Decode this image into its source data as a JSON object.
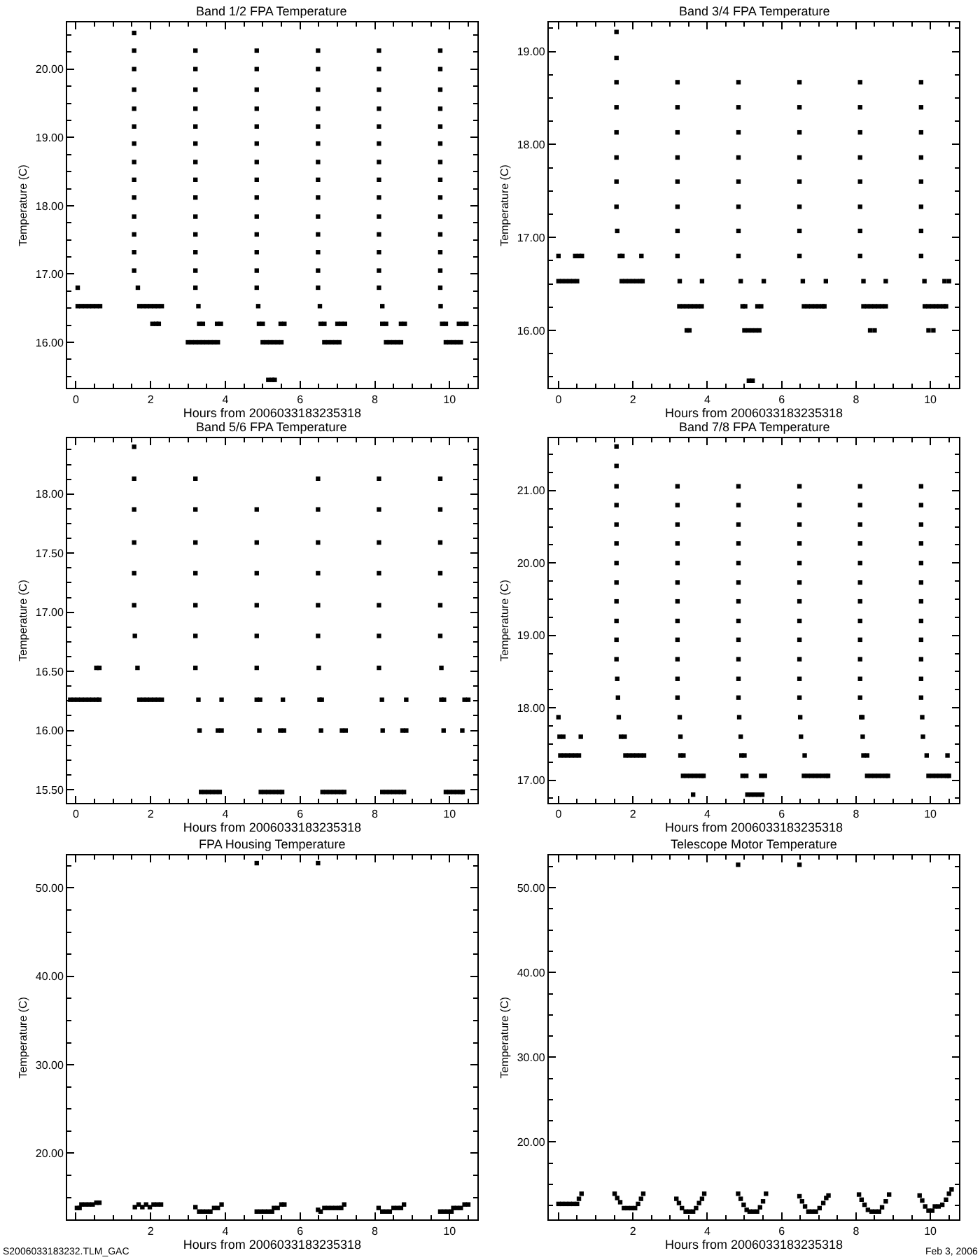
{
  "chart_data": [
    {
      "type": "scatter",
      "title": "Band 1/2 FPA Temperature",
      "xlabel": "Hours from 2006033183235318",
      "ylabel": "Temperature (C)",
      "color": "#000000",
      "marker": "square",
      "grid": false,
      "legend": false,
      "x": [
        0.05,
        0.05,
        0.15,
        0.25,
        0.35,
        0.45,
        0.55,
        0.65,
        1.56,
        1.56,
        1.56,
        1.56,
        1.56,
        1.56,
        1.56,
        1.56,
        1.56,
        1.56,
        1.56,
        1.56,
        1.56,
        1.56,
        1.66,
        1.7,
        1.8,
        1.9,
        2.0,
        2.1,
        2.2,
        2.3,
        2.05,
        2.15,
        2.22,
        3.2,
        3.2,
        3.2,
        3.2,
        3.2,
        3.2,
        3.2,
        3.2,
        3.2,
        3.2,
        3.2,
        3.2,
        3.2,
        3.2,
        3.28,
        3.3,
        3.4,
        3.0,
        3.1,
        3.2,
        3.3,
        3.4,
        3.5,
        3.6,
        3.7,
        3.8,
        3.78,
        3.88,
        4.84,
        4.84,
        4.84,
        4.84,
        4.84,
        4.84,
        4.84,
        4.84,
        4.84,
        4.84,
        4.84,
        4.84,
        4.84,
        4.84,
        4.88,
        4.9,
        5.0,
        5.0,
        5.1,
        5.2,
        5.3,
        5.4,
        5.5,
        5.15,
        5.25,
        5.32,
        5.48,
        5.58,
        6.48,
        6.48,
        6.48,
        6.48,
        6.48,
        6.48,
        6.48,
        6.48,
        6.48,
        6.48,
        6.48,
        6.48,
        6.48,
        6.48,
        6.53,
        6.55,
        6.65,
        6.65,
        6.75,
        6.85,
        6.95,
        7.05,
        7.0,
        7.1,
        7.2,
        8.11,
        8.11,
        8.11,
        8.11,
        8.11,
        8.11,
        8.11,
        8.11,
        8.11,
        8.11,
        8.11,
        8.11,
        8.11,
        8.11,
        8.2,
        8.2,
        8.3,
        8.3,
        8.4,
        8.5,
        8.6,
        8.7,
        8.7,
        8.8,
        9.75,
        9.75,
        9.75,
        9.75,
        9.75,
        9.75,
        9.75,
        9.75,
        9.75,
        9.75,
        9.75,
        9.75,
        9.75,
        9.75,
        9.76,
        9.8,
        9.9,
        9.9,
        10.0,
        10.1,
        10.2,
        10.3,
        10.25,
        10.35,
        10.45
      ],
      "values": [
        16.8,
        16.53,
        16.53,
        16.53,
        16.53,
        16.53,
        16.53,
        16.53,
        20.53,
        20.27,
        20.0,
        19.7,
        19.42,
        19.16,
        18.91,
        18.64,
        18.38,
        18.12,
        17.84,
        17.58,
        17.32,
        17.05,
        16.8,
        16.53,
        16.53,
        16.53,
        16.53,
        16.53,
        16.53,
        16.53,
        16.27,
        16.27,
        16.27,
        20.27,
        20.0,
        19.7,
        19.42,
        19.16,
        18.91,
        18.64,
        18.38,
        18.12,
        17.84,
        17.58,
        17.32,
        17.05,
        16.8,
        16.53,
        16.27,
        16.27,
        16.0,
        16.0,
        16.0,
        16.0,
        16.0,
        16.0,
        16.0,
        16.0,
        16.0,
        16.27,
        16.27,
        20.27,
        20.0,
        19.7,
        19.42,
        19.16,
        18.91,
        18.64,
        18.38,
        18.12,
        17.84,
        17.58,
        17.32,
        17.05,
        16.8,
        16.53,
        16.27,
        16.27,
        16.0,
        16.0,
        16.0,
        16.0,
        16.0,
        16.0,
        15.45,
        15.45,
        15.45,
        16.27,
        16.27,
        20.27,
        20.0,
        19.7,
        19.42,
        19.16,
        18.91,
        18.64,
        18.38,
        18.12,
        17.84,
        17.58,
        17.32,
        17.05,
        16.8,
        16.53,
        16.27,
        16.27,
        16.0,
        16.0,
        16.0,
        16.0,
        16.0,
        16.27,
        16.27,
        16.27,
        20.27,
        20.0,
        19.7,
        19.42,
        19.16,
        18.91,
        18.64,
        18.38,
        18.12,
        17.84,
        17.58,
        17.32,
        17.05,
        16.8,
        16.53,
        16.27,
        16.27,
        16.0,
        16.0,
        16.0,
        16.0,
        16.0,
        16.27,
        16.27,
        20.27,
        20.0,
        19.7,
        19.42,
        19.16,
        18.91,
        18.64,
        18.38,
        18.12,
        17.84,
        17.58,
        17.32,
        17.05,
        16.8,
        16.53,
        16.27,
        16.27,
        16.0,
        16.0,
        16.0,
        16.0,
        16.0,
        16.27,
        16.27,
        16.27
      ],
      "xlim": [
        -0.23,
        10.74
      ],
      "ylim": [
        15.33,
        20.68
      ],
      "xticks": [
        0,
        2,
        4,
        6,
        8,
        10
      ],
      "yticks": [
        {
          "value": 16,
          "label": "16.00"
        },
        {
          "value": 17,
          "label": "17.00"
        },
        {
          "value": 18,
          "label": "18.00"
        },
        {
          "value": 19,
          "label": "19.00"
        },
        {
          "value": 20,
          "label": "20.00"
        }
      ]
    },
    {
      "type": "scatter",
      "title": "Band 3/4 FPA Temperature",
      "xlabel": "Hours from 2006033183235318",
      "ylabel": "Temperature (C)",
      "color": "#000000",
      "marker": "square",
      "grid": false,
      "legend": false,
      "x": [
        0.0,
        0.45,
        0.55,
        0.63,
        0.0,
        0.1,
        0.2,
        0.3,
        0.4,
        0.5,
        1.56,
        1.56,
        1.56,
        1.56,
        1.56,
        1.56,
        1.56,
        1.56,
        1.58,
        1.65,
        1.72,
        1.7,
        1.8,
        1.9,
        2.0,
        2.1,
        2.2,
        2.26,
        2.23,
        3.2,
        3.2,
        3.2,
        3.2,
        3.2,
        3.2,
        3.2,
        3.2,
        3.26,
        3.25,
        3.35,
        3.45,
        3.55,
        3.65,
        3.75,
        3.85,
        3.45,
        3.52,
        3.86,
        4.84,
        4.84,
        4.84,
        4.84,
        4.84,
        4.84,
        4.84,
        4.84,
        4.9,
        4.95,
        5.02,
        5.0,
        5.1,
        5.2,
        5.3,
        5.4,
        5.12,
        5.22,
        5.35,
        5.45,
        5.52,
        6.48,
        6.48,
        6.48,
        6.48,
        6.48,
        6.48,
        6.48,
        6.48,
        6.57,
        6.6,
        6.7,
        6.8,
        6.9,
        7.0,
        7.1,
        7.15,
        7.19,
        8.11,
        8.11,
        8.11,
        8.11,
        8.11,
        8.11,
        8.11,
        8.11,
        8.2,
        8.2,
        8.3,
        8.4,
        8.5,
        8.6,
        8.7,
        8.8,
        8.38,
        8.5,
        8.8,
        9.75,
        9.75,
        9.75,
        9.75,
        9.75,
        9.75,
        9.75,
        9.75,
        9.84,
        9.85,
        9.95,
        10.05,
        10.15,
        10.25,
        10.35,
        10.42,
        9.95,
        10.08,
        10.38,
        10.5
      ],
      "values": [
        16.8,
        16.8,
        16.8,
        16.8,
        16.53,
        16.53,
        16.53,
        16.53,
        16.53,
        16.53,
        19.21,
        18.93,
        18.67,
        18.4,
        18.13,
        17.86,
        17.6,
        17.33,
        17.07,
        16.8,
        16.8,
        16.53,
        16.53,
        16.53,
        16.53,
        16.53,
        16.53,
        16.53,
        16.8,
        18.67,
        18.4,
        18.13,
        17.86,
        17.6,
        17.33,
        17.07,
        16.8,
        16.53,
        16.26,
        16.26,
        16.26,
        16.26,
        16.26,
        16.26,
        16.26,
        16.0,
        16.0,
        16.53,
        18.67,
        18.4,
        18.13,
        17.86,
        17.6,
        17.33,
        17.07,
        16.8,
        16.53,
        16.26,
        16.26,
        16.0,
        16.0,
        16.0,
        16.0,
        16.0,
        15.46,
        15.46,
        16.26,
        16.26,
        16.53,
        18.67,
        18.4,
        18.13,
        17.86,
        17.6,
        17.33,
        17.07,
        16.8,
        16.53,
        16.26,
        16.26,
        16.26,
        16.26,
        16.26,
        16.26,
        16.26,
        16.53,
        18.67,
        18.4,
        18.13,
        17.86,
        17.6,
        17.33,
        17.07,
        16.8,
        16.53,
        16.26,
        16.26,
        16.26,
        16.26,
        16.26,
        16.26,
        16.26,
        16.0,
        16.0,
        16.53,
        18.67,
        18.4,
        18.13,
        17.86,
        17.6,
        17.33,
        17.07,
        16.8,
        16.53,
        16.26,
        16.26,
        16.26,
        16.26,
        16.26,
        16.26,
        16.26,
        16.0,
        16.0,
        16.53,
        16.53
      ],
      "xlim": [
        -0.26,
        10.77
      ],
      "ylim": [
        15.38,
        19.31
      ],
      "xticks": [
        0,
        2,
        4,
        6,
        8,
        10
      ],
      "yticks": [
        {
          "value": 16,
          "label": "16.00"
        },
        {
          "value": 17,
          "label": "17.00"
        },
        {
          "value": 18,
          "label": "18.00"
        },
        {
          "value": 19,
          "label": "19.00"
        }
      ]
    },
    {
      "type": "scatter",
      "title": "Band 5/6 FPA Temperature",
      "xlabel": "Hours from 2006033183235318",
      "ylabel": "Temperature (C)",
      "color": "#000000",
      "marker": "square",
      "grid": false,
      "legend": false,
      "x": [
        -0.15,
        -0.05,
        0.05,
        0.15,
        0.25,
        0.35,
        0.45,
        0.55,
        0.63,
        0.55,
        0.63,
        1.56,
        1.56,
        1.56,
        1.56,
        1.56,
        1.56,
        1.58,
        1.65,
        1.7,
        1.8,
        1.9,
        2.0,
        2.1,
        2.2,
        2.3,
        3.2,
        3.2,
        3.2,
        3.2,
        3.2,
        3.2,
        3.2,
        3.28,
        3.31,
        3.35,
        3.45,
        3.55,
        3.65,
        3.75,
        3.85,
        3.9,
        3.8,
        3.9,
        4.84,
        4.84,
        4.84,
        4.84,
        4.84,
        4.84,
        4.84,
        4.93,
        4.91,
        4.95,
        5.05,
        5.15,
        5.25,
        5.35,
        5.45,
        5.52,
        5.47,
        5.57,
        5.54,
        6.48,
        6.48,
        6.48,
        6.48,
        6.48,
        6.48,
        6.5,
        6.52,
        6.58,
        6.56,
        6.6,
        6.7,
        6.8,
        6.9,
        7.0,
        7.1,
        7.18,
        7.12,
        7.22,
        8.11,
        8.11,
        8.11,
        8.11,
        8.11,
        8.11,
        8.11,
        8.19,
        8.21,
        8.2,
        8.3,
        8.4,
        8.5,
        8.6,
        8.7,
        8.78,
        8.74,
        8.84,
        8.84,
        9.75,
        9.75,
        9.75,
        9.75,
        9.75,
        9.75,
        9.78,
        9.78,
        9.85,
        9.84,
        9.9,
        10.0,
        10.1,
        10.2,
        10.3,
        10.35,
        10.34,
        10.4,
        10.5
      ],
      "values": [
        16.26,
        16.26,
        16.26,
        16.26,
        16.26,
        16.26,
        16.26,
        16.26,
        16.26,
        16.53,
        16.53,
        18.4,
        18.13,
        17.87,
        17.59,
        17.33,
        17.06,
        16.8,
        16.53,
        16.26,
        16.26,
        16.26,
        16.26,
        16.26,
        16.26,
        16.26,
        18.13,
        17.87,
        17.59,
        17.33,
        17.06,
        16.8,
        16.53,
        16.26,
        16.0,
        15.48,
        15.48,
        15.48,
        15.48,
        15.48,
        15.48,
        16.26,
        16.0,
        16.0,
        17.87,
        17.59,
        17.33,
        17.06,
        16.8,
        16.53,
        16.26,
        16.26,
        16.0,
        15.48,
        15.48,
        15.48,
        15.48,
        15.48,
        15.48,
        15.48,
        16.0,
        16.0,
        16.26,
        18.13,
        17.87,
        17.59,
        17.33,
        17.06,
        16.8,
        16.53,
        16.26,
        16.26,
        16.0,
        15.48,
        15.48,
        15.48,
        15.48,
        15.48,
        15.48,
        15.48,
        16.0,
        16.0,
        18.13,
        17.87,
        17.59,
        17.33,
        17.06,
        16.8,
        16.53,
        16.26,
        16.0,
        15.48,
        15.48,
        15.48,
        15.48,
        15.48,
        15.48,
        15.48,
        16.0,
        16.0,
        16.26,
        18.13,
        17.87,
        17.59,
        17.33,
        17.06,
        16.8,
        16.53,
        16.26,
        16.26,
        16.0,
        15.48,
        15.48,
        15.48,
        15.48,
        15.48,
        15.48,
        16.0,
        16.26,
        16.26
      ],
      "xlim": [
        -0.23,
        10.74
      ],
      "ylim": [
        15.39,
        18.47
      ],
      "xticks": [
        0,
        2,
        4,
        6,
        8,
        10
      ],
      "yticks": [
        {
          "value": 15.5,
          "label": "15.50"
        },
        {
          "value": 16,
          "label": "16.00"
        },
        {
          "value": 16.5,
          "label": "16.50"
        },
        {
          "value": 17,
          "label": "17.00"
        },
        {
          "value": 17.5,
          "label": "17.50"
        },
        {
          "value": 18,
          "label": "18.00"
        }
      ]
    },
    {
      "type": "scatter",
      "title": "Band 7/8 FPA Temperature",
      "xlabel": "Hours from 2006033183235318",
      "ylabel": "Temperature (C)",
      "color": "#000000",
      "marker": "square",
      "grid": false,
      "legend": false,
      "x": [
        0.0,
        0.03,
        0.13,
        0.6,
        0.05,
        0.15,
        0.25,
        0.35,
        0.45,
        0.55,
        1.56,
        1.56,
        1.56,
        1.56,
        1.56,
        1.56,
        1.56,
        1.56,
        1.56,
        1.56,
        1.56,
        1.56,
        1.58,
        1.6,
        1.62,
        1.68,
        1.78,
        1.8,
        1.9,
        2.0,
        2.1,
        2.2,
        2.3,
        3.2,
        3.2,
        3.2,
        3.2,
        3.2,
        3.2,
        3.2,
        3.2,
        3.2,
        3.2,
        3.2,
        3.2,
        3.26,
        3.28,
        3.28,
        3.36,
        3.35,
        3.45,
        3.55,
        3.65,
        3.75,
        3.85,
        3.9,
        3.62,
        4.84,
        4.84,
        4.84,
        4.84,
        4.84,
        4.84,
        4.84,
        4.84,
        4.84,
        4.84,
        4.84,
        4.84,
        4.86,
        4.9,
        4.92,
        5.0,
        4.95,
        5.05,
        5.08,
        5.18,
        5.28,
        5.38,
        5.48,
        5.45,
        5.55,
        6.48,
        6.48,
        6.48,
        6.48,
        6.48,
        6.48,
        6.48,
        6.48,
        6.48,
        6.48,
        6.48,
        6.48,
        6.5,
        6.52,
        6.62,
        6.6,
        6.7,
        6.8,
        6.9,
        7.0,
        7.1,
        7.2,
        7.25,
        8.11,
        8.11,
        8.11,
        8.11,
        8.11,
        8.11,
        8.11,
        8.11,
        8.11,
        8.11,
        8.11,
        8.11,
        8.14,
        8.17,
        8.18,
        8.2,
        8.3,
        8.3,
        8.4,
        8.5,
        8.6,
        8.7,
        8.8,
        8.86,
        9.75,
        9.75,
        9.75,
        9.75,
        9.75,
        9.75,
        9.75,
        9.75,
        9.75,
        9.75,
        9.75,
        9.75,
        9.78,
        9.8,
        9.9,
        9.95,
        10.05,
        10.15,
        10.25,
        10.35,
        10.45,
        10.5,
        10.46
      ],
      "values": [
        17.87,
        17.6,
        17.6,
        17.6,
        17.34,
        17.34,
        17.34,
        17.34,
        17.34,
        17.34,
        21.61,
        21.34,
        21.06,
        20.8,
        20.53,
        20.27,
        20.0,
        19.73,
        19.47,
        19.2,
        18.94,
        18.67,
        18.4,
        18.14,
        17.87,
        17.6,
        17.6,
        17.34,
        17.34,
        17.34,
        17.34,
        17.34,
        17.34,
        21.06,
        20.8,
        20.53,
        20.27,
        20.0,
        19.73,
        19.47,
        19.2,
        18.94,
        18.67,
        18.4,
        18.14,
        17.87,
        17.6,
        17.34,
        17.34,
        17.06,
        17.06,
        17.06,
        17.06,
        17.06,
        17.06,
        17.06,
        16.8,
        21.06,
        20.8,
        20.53,
        20.27,
        20.0,
        19.73,
        19.47,
        19.2,
        18.94,
        18.67,
        18.4,
        18.14,
        17.87,
        17.6,
        17.34,
        17.34,
        17.06,
        17.06,
        16.8,
        16.8,
        16.8,
        16.8,
        16.8,
        17.06,
        17.06,
        21.06,
        20.8,
        20.53,
        20.27,
        20.0,
        19.73,
        19.47,
        19.2,
        18.94,
        18.67,
        18.4,
        18.14,
        17.87,
        17.6,
        17.34,
        17.06,
        17.06,
        17.06,
        17.06,
        17.06,
        17.06,
        17.06,
        17.06,
        21.06,
        20.8,
        20.53,
        20.27,
        20.0,
        19.73,
        19.47,
        19.2,
        18.94,
        18.67,
        18.4,
        18.14,
        17.87,
        17.87,
        17.6,
        17.34,
        17.34,
        17.06,
        17.06,
        17.06,
        17.06,
        17.06,
        17.06,
        17.06,
        21.06,
        20.8,
        20.53,
        20.27,
        20.0,
        19.73,
        19.47,
        19.2,
        18.94,
        18.67,
        18.4,
        18.14,
        17.87,
        17.6,
        17.34,
        17.06,
        17.06,
        17.06,
        17.06,
        17.06,
        17.06,
        17.06,
        17.34
      ],
      "xlim": [
        -0.26,
        10.77
      ],
      "ylim": [
        16.69,
        21.72
      ],
      "xticks": [
        0,
        2,
        4,
        6,
        8,
        10
      ],
      "yticks": [
        {
          "value": 17,
          "label": "17.00"
        },
        {
          "value": 18,
          "label": "18.00"
        },
        {
          "value": 19,
          "label": "19.00"
        },
        {
          "value": 20,
          "label": "20.00"
        },
        {
          "value": 21,
          "label": "21.00"
        }
      ]
    },
    {
      "type": "scatter",
      "title": "FPA Housing Temperature",
      "xlabel": "Hours from 2006033183235318",
      "ylabel": "Temperature (C)",
      "color": "#000000",
      "marker": "square",
      "grid": false,
      "legend": false,
      "annotations": [
        "S2006033183232.TLM_GAC"
      ],
      "x": [
        0.03,
        0.1,
        0.15,
        0.25,
        0.35,
        0.45,
        0.55,
        0.63,
        1.58,
        1.68,
        1.78,
        1.88,
        1.98,
        2.08,
        2.18,
        2.28,
        3.2,
        3.3,
        3.4,
        3.5,
        3.6,
        3.7,
        3.8,
        3.9,
        4.84,
        4.84,
        4.95,
        5.05,
        5.15,
        5.25,
        5.3,
        5.4,
        5.5,
        5.58,
        6.48,
        6.48,
        6.55,
        6.65,
        6.75,
        6.85,
        6.95,
        7.05,
        7.1,
        7.18,
        8.1,
        8.2,
        8.3,
        8.4,
        8.5,
        8.6,
        8.7,
        8.78,
        9.75,
        9.85,
        9.95,
        10.05,
        10.1,
        10.2,
        10.3,
        10.4,
        10.5
      ],
      "values": [
        13.8,
        13.8,
        14.2,
        14.2,
        14.2,
        14.2,
        14.4,
        14.4,
        13.9,
        14.2,
        13.9,
        14.2,
        13.9,
        14.2,
        14.2,
        14.2,
        13.9,
        13.4,
        13.4,
        13.4,
        13.4,
        13.8,
        13.8,
        14.2,
        52.8,
        13.4,
        13.4,
        13.4,
        13.4,
        13.4,
        13.8,
        13.8,
        14.2,
        14.2,
        52.8,
        13.6,
        13.4,
        13.8,
        13.8,
        13.8,
        13.8,
        13.8,
        13.8,
        14.2,
        13.8,
        13.4,
        13.4,
        13.4,
        13.8,
        13.8,
        13.8,
        14.2,
        13.4,
        13.4,
        13.4,
        13.4,
        13.8,
        13.8,
        13.8,
        14.2,
        14.2
      ],
      "xlim": [
        -0.23,
        10.74
      ],
      "ylim": [
        12.48,
        53.66
      ],
      "xticks": [
        {
          "value": 0,
          "label": null
        },
        2,
        4,
        6,
        8,
        10
      ],
      "yticks": [
        {
          "value": 20,
          "label": "20.00"
        },
        {
          "value": 30,
          "label": "30.00"
        },
        {
          "value": 40,
          "label": "40.00"
        },
        {
          "value": 50,
          "label": "50.00"
        }
      ]
    },
    {
      "type": "scatter",
      "title": "Telescope Motor Temperature",
      "xlabel": "Hours from 2006033183235318",
      "ylabel": "Temperature (C)",
      "color": "#000000",
      "marker": "square",
      "grid": false,
      "legend": false,
      "annotations": [
        "Feb 3, 2006"
      ],
      "x": [
        0.0,
        0.1,
        0.2,
        0.3,
        0.4,
        0.5,
        0.55,
        0.62,
        1.51,
        1.58,
        1.66,
        1.76,
        1.86,
        1.96,
        2.06,
        2.14,
        2.22,
        2.28,
        3.17,
        3.24,
        3.32,
        3.42,
        3.52,
        3.62,
        3.7,
        3.78,
        3.86,
        3.92,
        4.83,
        4.83,
        4.9,
        4.98,
        5.06,
        5.14,
        5.24,
        5.34,
        5.42,
        5.5,
        5.58,
        6.48,
        6.48,
        6.55,
        6.63,
        6.72,
        6.82,
        6.92,
        7.02,
        7.12,
        7.2,
        7.26,
        8.08,
        8.15,
        8.23,
        8.32,
        8.42,
        8.52,
        8.62,
        8.7,
        8.8,
        8.89,
        9.71,
        9.78,
        9.86,
        9.95,
        10.05,
        10.12,
        10.22,
        10.32,
        10.42,
        10.5,
        10.57
      ],
      "values": [
        12.7,
        12.7,
        12.7,
        12.7,
        12.7,
        12.7,
        13.3,
        13.9,
        13.9,
        13.4,
        12.9,
        12.2,
        12.2,
        12.2,
        12.2,
        12.7,
        13.3,
        13.9,
        13.3,
        12.8,
        12.2,
        11.8,
        11.8,
        11.8,
        12.2,
        12.8,
        13.3,
        13.9,
        52.7,
        13.9,
        13.3,
        12.6,
        12.0,
        11.8,
        11.8,
        11.8,
        12.3,
        13.0,
        13.9,
        52.7,
        13.6,
        13.0,
        12.4,
        11.8,
        11.8,
        11.8,
        12.2,
        12.8,
        13.4,
        13.7,
        13.8,
        13.2,
        12.6,
        12.0,
        11.8,
        11.8,
        11.8,
        12.3,
        13.0,
        13.8,
        13.7,
        13.1,
        12.4,
        11.9,
        11.9,
        12.4,
        12.4,
        12.6,
        13.2,
        13.9,
        14.4
      ],
      "xlim": [
        -0.26,
        10.77
      ],
      "ylim": [
        10.84,
        53.79
      ],
      "xticks": [
        {
          "value": 0,
          "label": null
        },
        2,
        4,
        6,
        8,
        10
      ],
      "yticks": [
        {
          "value": 20,
          "label": "20.00"
        },
        {
          "value": 30,
          "label": "30.00"
        },
        {
          "value": 40,
          "label": "40.00"
        },
        {
          "value": 50,
          "label": "50.00"
        }
      ]
    }
  ]
}
